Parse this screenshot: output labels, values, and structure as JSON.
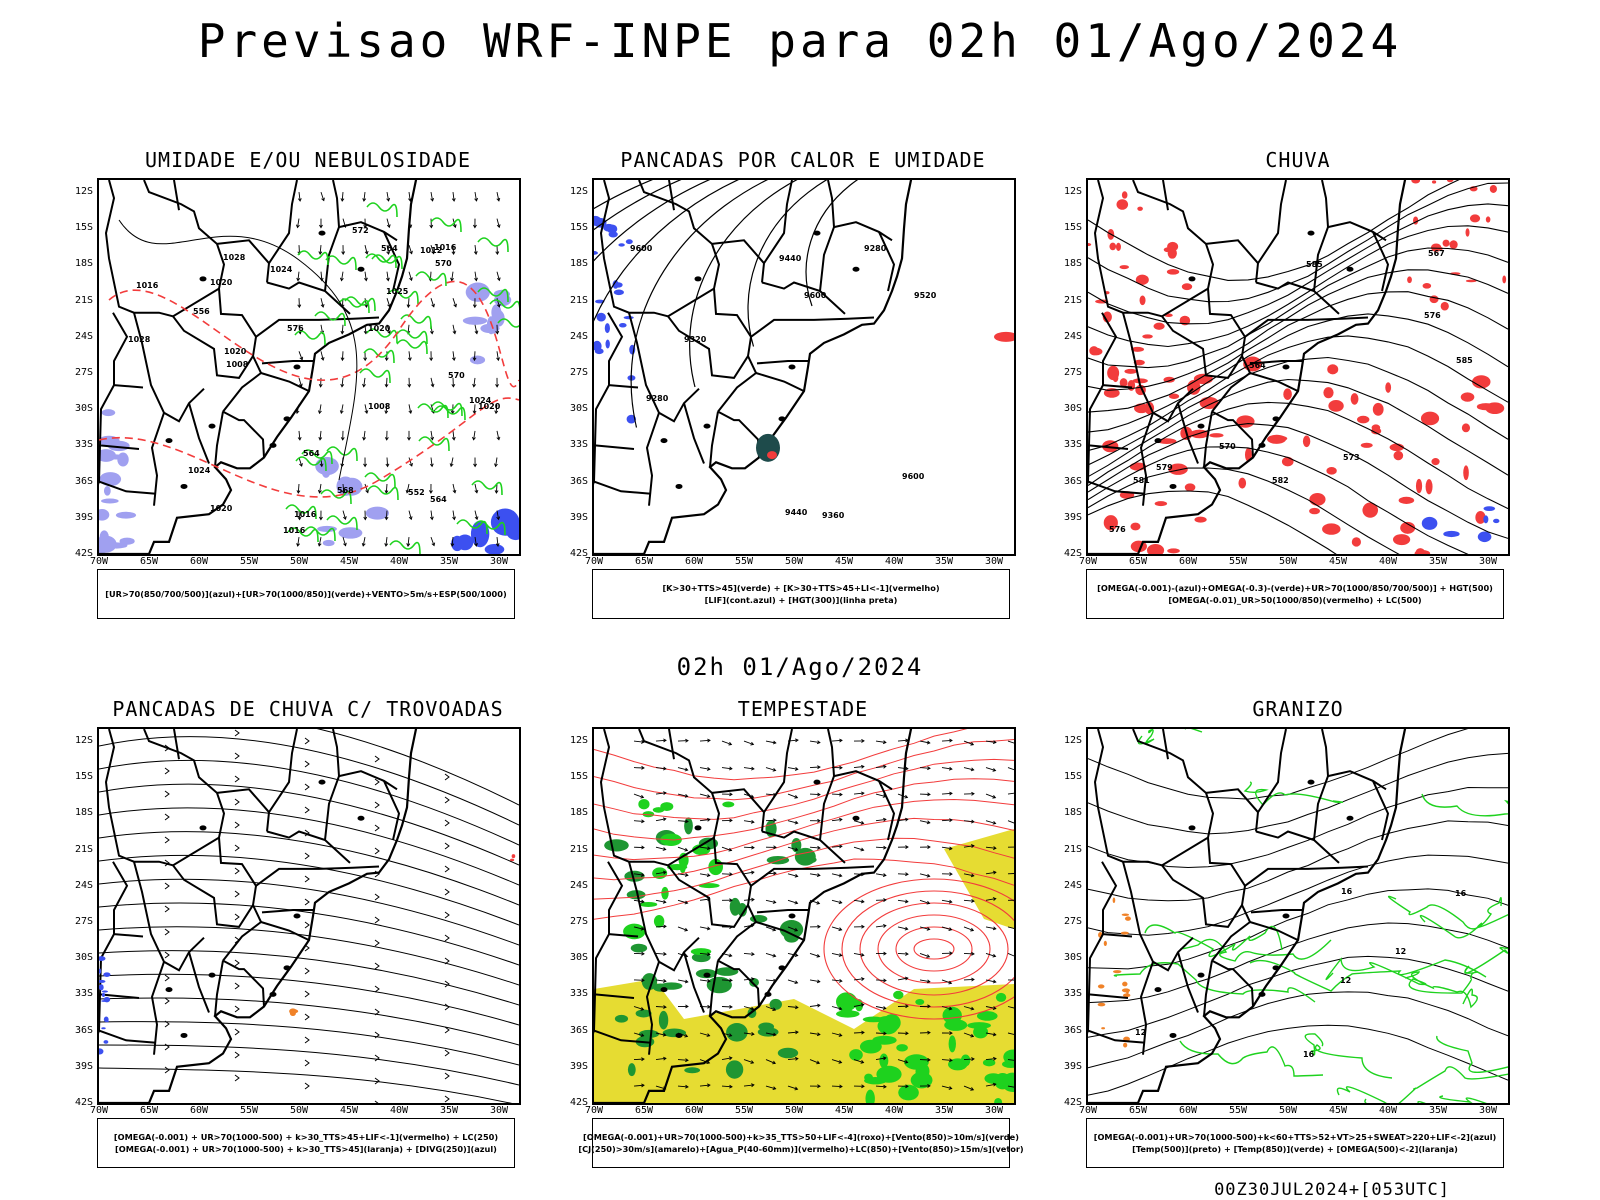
{
  "title": "Previsao WRF-INPE  para 02h 01/Ago/2024",
  "mid_title": "02h 01/Ago/2024",
  "footer": "00Z30JUL2024+[053UTC]",
  "lat_labels": [
    "12S",
    "15S",
    "18S",
    "21S",
    "24S",
    "27S",
    "30S",
    "33S",
    "36S",
    "39S",
    "42S"
  ],
  "lon_labels": [
    "70W",
    "65W",
    "60W",
    "55W",
    "50W",
    "45W",
    "40W",
    "35W",
    "30W"
  ],
  "colors": {
    "red": "#f23c3c",
    "green": "#1ed21e",
    "blue": "#3c50f0",
    "lavender": "#a0a0f0",
    "yellow": "#e6dc32",
    "darkgreen": "#1e9632",
    "orange": "#f08228",
    "teal": "#1e4b4b"
  },
  "panels": [
    {
      "id": "umidade",
      "title": "UMIDADE E/OU NEBULOSIDADE",
      "legend": [
        "[UR>70(850/700/500)](azul)+[UR>70(1000/850)](verde)+VENTO>5m/s+ESP(500/1000)"
      ],
      "contour_labels": [
        "1016",
        "1020",
        "1020",
        "1016",
        "1012",
        "1016",
        "1008",
        "1008",
        "1016",
        "1020",
        "1024",
        "1028",
        "1025",
        "1024",
        "1028",
        "1020",
        "1020",
        "1024",
        "564",
        "568",
        "552",
        "570",
        "576",
        "564",
        "564",
        "556",
        "570",
        "572"
      ]
    },
    {
      "id": "pancadas-calor",
      "title": "PANCADAS POR CALOR E UMIDADE",
      "legend": [
        "[K>30+TTS>45](verde) + [K>30+TTS>45+LI<-1](vermelho)",
        "[LIF](cont.azul) + [HGT(300)](linha preta)"
      ],
      "contour_labels": [
        "9600",
        "9600",
        "9600",
        "9520",
        "9440",
        "9440",
        "9360",
        "9280",
        "9320",
        "9280"
      ]
    },
    {
      "id": "chuva",
      "title": "CHUVA",
      "legend": [
        "[OMEGA(-0.001)-(azul)+OMEGA(-0.3)-(verde)+UR>70(1000/850/700/500)] + HGT(500)",
        "[OMEGA(-0.01)_UR>50(1000/850)(vermelho) + LC(500)"
      ],
      "contour_labels": [
        "585",
        "585",
        "582",
        "573",
        "570",
        "576",
        "567",
        "564",
        "581",
        "576",
        "579"
      ]
    },
    {
      "id": "pancadas-trovoadas",
      "title": "PANCADAS DE CHUVA C/ TROVOADAS",
      "legend": [
        "[OMEGA(-0.001) + UR>70(1000-500) + k>30_TTS>45+LIF<-1](vermelho) + LC(250)",
        "[OMEGA(-0.001) + UR>70(1000-500) + k>30_TTS>45](laranja) + [DIVG(250)](azul)"
      ],
      "contour_labels": []
    },
    {
      "id": "tempestade",
      "title": "TEMPESTADE",
      "legend": [
        "[OMEGA(-0.001)+UR>70(1000-500)+k>35_TTS>50+LIF<-4](roxo)+[Vento(850)>10m/s](verde)",
        "[CJ(250)>30m/s](amarelo)+[Agua_P(40-60mm)](vermelho)+LC(850)+[Vento(850)>15m/s](vetor)"
      ],
      "contour_labels": []
    },
    {
      "id": "granizo",
      "title": "GRANIZO",
      "legend": [
        "[OMEGA(-0.001)+UR>70(1000-500)+k<60+TTS>52+VT>25+SWEAT>220+LIF<-2](azul)",
        "[Temp(500)](preto) + [Temp(850)](verde) + [OMEGA(500)<-2](laranja)"
      ],
      "contour_labels": [
        "12",
        "12",
        "16",
        "16",
        "16",
        "12"
      ]
    }
  ]
}
